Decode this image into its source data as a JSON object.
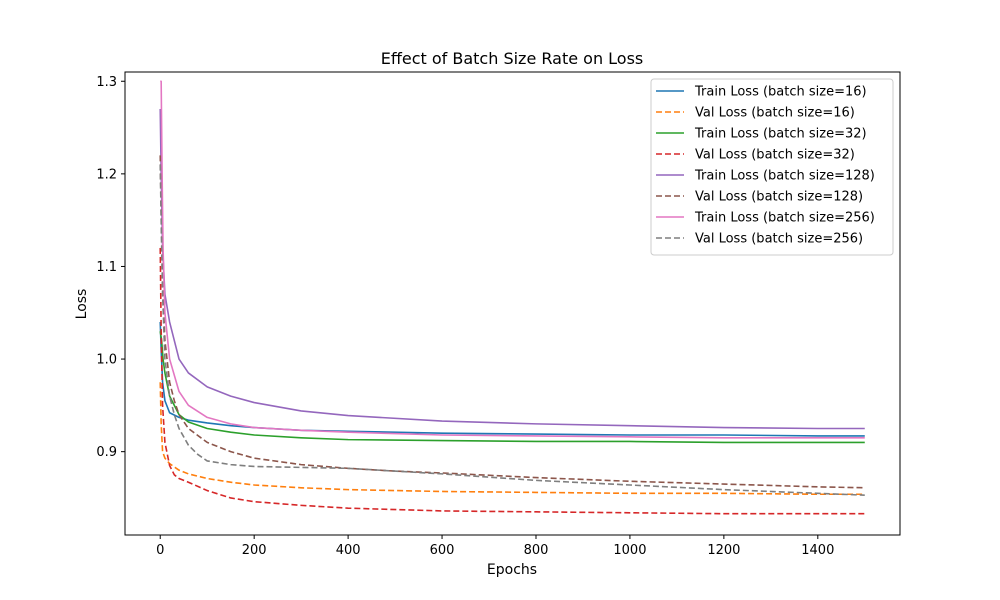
{
  "chart_data": {
    "type": "line",
    "title": "Effect of Batch Size Rate on Loss",
    "xlabel": "Epochs",
    "ylabel": "Loss",
    "xlim": [
      -75,
      1575
    ],
    "ylim": [
      0.81,
      1.31
    ],
    "xticks": [
      0,
      200,
      400,
      600,
      800,
      1000,
      1200,
      1400
    ],
    "yticks": [
      0.9,
      1.0,
      1.1,
      1.2,
      1.3
    ],
    "ytick_labels": [
      "0.9",
      "1.0",
      "1.1",
      "1.2",
      "1.3"
    ],
    "grid": false,
    "legend_position": "top-right",
    "series": [
      {
        "name": "Train Loss (batch size=16)",
        "color": "#1f77b4",
        "style": "solid",
        "x": [
          0,
          2,
          5,
          10,
          20,
          40,
          60,
          100,
          150,
          200,
          300,
          400,
          600,
          800,
          1000,
          1200,
          1400,
          1500
        ],
        "y": [
          1.04,
          1.01,
          0.975,
          0.955,
          0.942,
          0.937,
          0.934,
          0.931,
          0.928,
          0.926,
          0.923,
          0.922,
          0.92,
          0.919,
          0.918,
          0.918,
          0.917,
          0.917
        ]
      },
      {
        "name": "Val Loss (batch size=16)",
        "color": "#ff7f0e",
        "style": "dashed",
        "x": [
          0,
          2,
          5,
          10,
          20,
          40,
          60,
          100,
          150,
          200,
          300,
          400,
          600,
          800,
          1000,
          1200,
          1400,
          1500
        ],
        "y": [
          0.975,
          0.93,
          0.9,
          0.893,
          0.887,
          0.88,
          0.876,
          0.871,
          0.867,
          0.864,
          0.861,
          0.859,
          0.857,
          0.856,
          0.855,
          0.855,
          0.854,
          0.854
        ]
      },
      {
        "name": "Train Loss (batch size=32)",
        "color": "#2ca02c",
        "style": "solid",
        "x": [
          0,
          3,
          6,
          10,
          20,
          40,
          60,
          100,
          150,
          200,
          300,
          400,
          600,
          800,
          1000,
          1200,
          1400,
          1500
        ],
        "y": [
          1.03,
          1.02,
          1.0,
          0.985,
          0.96,
          0.94,
          0.932,
          0.925,
          0.921,
          0.918,
          0.915,
          0.913,
          0.912,
          0.911,
          0.911,
          0.91,
          0.91,
          0.91
        ]
      },
      {
        "name": "Val Loss (batch size=32)",
        "color": "#d62728",
        "style": "dashed",
        "x": [
          0,
          2,
          5,
          10,
          20,
          30,
          40,
          60,
          100,
          150,
          200,
          300,
          400,
          600,
          800,
          1000,
          1200,
          1400,
          1500
        ],
        "y": [
          1.12,
          1.03,
          0.95,
          0.91,
          0.885,
          0.875,
          0.871,
          0.867,
          0.858,
          0.85,
          0.846,
          0.842,
          0.839,
          0.836,
          0.835,
          0.834,
          0.833,
          0.833,
          0.833
        ]
      },
      {
        "name": "Train Loss (batch size=128)",
        "color": "#9467bd",
        "style": "solid",
        "x": [
          0,
          2,
          5,
          10,
          20,
          40,
          60,
          100,
          150,
          200,
          300,
          400,
          600,
          800,
          1000,
          1200,
          1400,
          1500
        ],
        "y": [
          1.27,
          1.2,
          1.12,
          1.07,
          1.04,
          1.0,
          0.985,
          0.97,
          0.96,
          0.953,
          0.944,
          0.939,
          0.933,
          0.93,
          0.928,
          0.926,
          0.925,
          0.925
        ]
      },
      {
        "name": "Val Loss (batch size=128)",
        "color": "#8c564b",
        "style": "dashed",
        "x": [
          0,
          2,
          5,
          10,
          20,
          30,
          40,
          60,
          100,
          150,
          200,
          300,
          400,
          500,
          600,
          800,
          1000,
          1200,
          1400,
          1500
        ],
        "y": [
          1.22,
          1.16,
          1.08,
          1.02,
          0.975,
          0.955,
          0.94,
          0.925,
          0.91,
          0.9,
          0.893,
          0.886,
          0.882,
          0.879,
          0.877,
          0.872,
          0.868,
          0.865,
          0.862,
          0.861
        ]
      },
      {
        "name": "Train Loss (batch size=256)",
        "color": "#e377c2",
        "style": "solid",
        "x": [
          0,
          2,
          4,
          6,
          10,
          20,
          40,
          60,
          100,
          150,
          200,
          300,
          400,
          600,
          800,
          1000,
          1200,
          1400,
          1500
        ],
        "y": [
          1.3,
          1.3,
          1.2,
          1.12,
          1.05,
          1.0,
          0.965,
          0.95,
          0.937,
          0.93,
          0.926,
          0.923,
          0.921,
          0.918,
          0.917,
          0.916,
          0.915,
          0.915,
          0.915
        ]
      },
      {
        "name": "Val Loss (batch size=256)",
        "color": "#7f7f7f",
        "style": "dashed",
        "x": [
          0,
          2,
          5,
          10,
          20,
          30,
          40,
          60,
          80,
          100,
          150,
          200,
          300,
          400,
          600,
          800,
          1000,
          1200,
          1400,
          1500
        ],
        "y": [
          1.21,
          1.15,
          1.07,
          1.0,
          0.96,
          0.94,
          0.925,
          0.907,
          0.897,
          0.89,
          0.886,
          0.884,
          0.883,
          0.882,
          0.876,
          0.869,
          0.864,
          0.859,
          0.855,
          0.853
        ]
      }
    ]
  }
}
